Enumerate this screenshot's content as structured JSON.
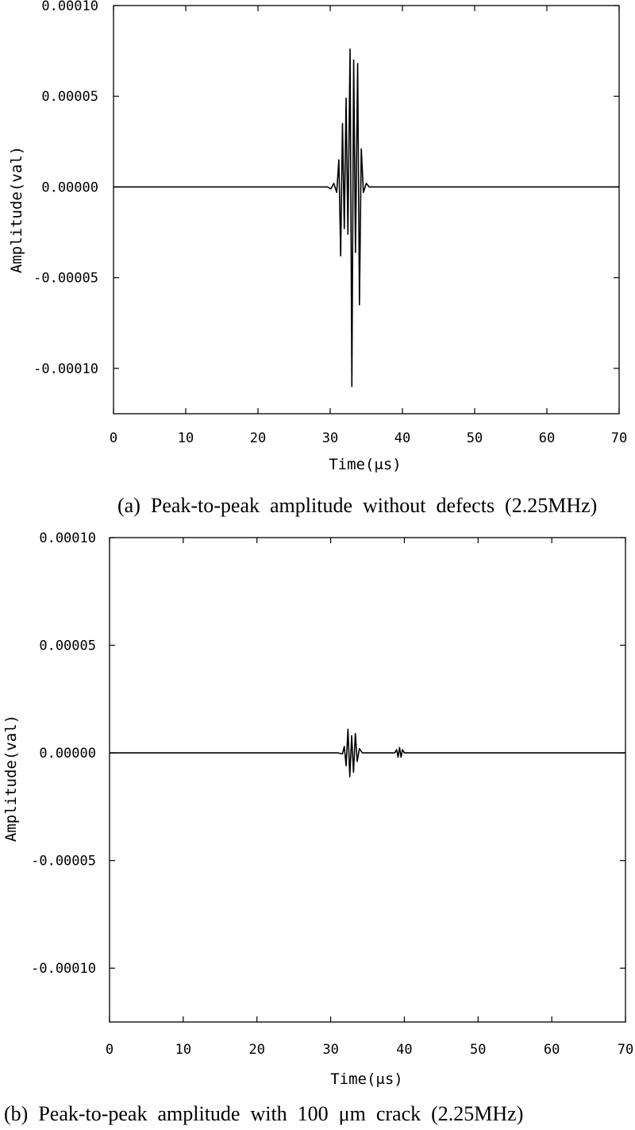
{
  "chart_data": [
    {
      "type": "line",
      "caption": "(a)  Peak-to-peak  amplitude  without  defects  (2.25MHz)",
      "xlabel": "Time(μs)",
      "ylabel": "Amplitude(val)",
      "xlim": [
        0,
        70
      ],
      "ylim": [
        -0.000125,
        0.0001
      ],
      "xticks": [
        0,
        10,
        20,
        30,
        40,
        50,
        60,
        70
      ],
      "yticks": [
        0.0001,
        5e-05,
        0.0,
        -5e-05,
        -0.0001
      ],
      "xtick_labels": [
        "0",
        "10",
        "20",
        "30",
        "40",
        "50",
        "60",
        "70"
      ],
      "ytick_labels": [
        "0.00010",
        "0.00005",
        "0.00000",
        "-0.00005",
        "-0.00010"
      ],
      "grid": false,
      "series": [
        {
          "x": [
            0,
            29.6,
            30.1,
            30.5,
            30.9,
            31.2,
            31.45,
            31.7,
            31.95,
            32.2,
            32.45,
            32.75,
            33.0,
            33.25,
            33.5,
            33.8,
            34.05,
            34.3,
            34.6,
            35.0,
            35.4,
            70
          ],
          "y": [
            0,
            0,
            -1e-06,
            2e-06,
            -3e-06,
            1.5e-05,
            -3.8e-05,
            3.5e-05,
            -2.3e-05,
            4.9e-05,
            -2.6e-05,
            7.6e-05,
            -0.00011,
            7e-05,
            -3.6e-05,
            6.8e-05,
            -6.5e-05,
            2.1e-05,
            -3e-06,
            2e-06,
            0,
            0
          ]
        }
      ]
    },
    {
      "type": "line",
      "caption": "(b)  Peak-to-peak  amplitude  with  100  μm  crack  (2.25MHz)",
      "xlabel": "Time(μs)",
      "ylabel": "Amplitude(val)",
      "xlim": [
        0,
        70
      ],
      "ylim": [
        -0.000125,
        0.0001
      ],
      "xticks": [
        0,
        10,
        20,
        30,
        40,
        50,
        60,
        70
      ],
      "yticks": [
        0.0001,
        5e-05,
        0.0,
        -5e-05,
        -0.0001
      ],
      "xtick_labels": [
        "0",
        "10",
        "20",
        "30",
        "40",
        "50",
        "60",
        "70"
      ],
      "ytick_labels": [
        "0.00010",
        "0.00005",
        "0.00000",
        "-0.00005",
        "-0.00010"
      ],
      "grid": false,
      "series": [
        {
          "x": [
            0,
            31.0,
            31.6,
            31.85,
            32.1,
            32.35,
            32.6,
            32.85,
            33.1,
            33.35,
            33.6,
            33.9,
            34.3,
            38.7,
            38.95,
            39.15,
            39.35,
            39.55,
            39.75,
            40.0,
            70
          ],
          "y": [
            0,
            0,
            -5e-07,
            3e-06,
            -6e-06,
            1.1e-05,
            -1.1e-05,
            8e-06,
            -9e-06,
            9e-06,
            -4e-06,
            2e-06,
            0,
            0,
            1.5e-06,
            -2e-06,
            2.5e-06,
            -2e-06,
            1.5e-06,
            0,
            0
          ]
        }
      ]
    }
  ]
}
